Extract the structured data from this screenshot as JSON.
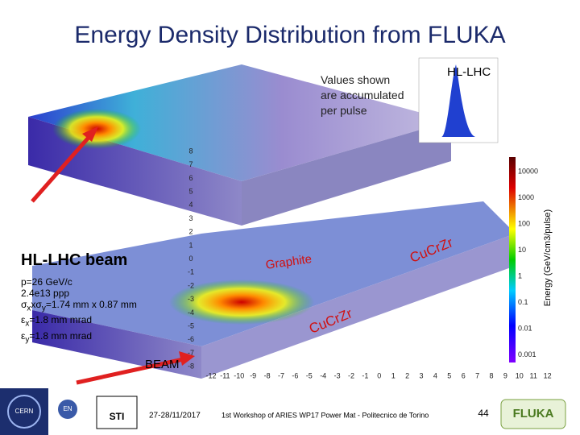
{
  "title": "Energy Density Distribution from FLUKA",
  "note": [
    "Values shown",
    "are accumulated",
    "per pulse"
  ],
  "inset_label": "HL-LHC",
  "beam": {
    "heading": "HL-LHC beam",
    "lines": [
      "p=26 GeV/c",
      "2.4e13 ppp"
    ],
    "sigma": [
      "σ",
      "x",
      "xσ",
      "y",
      "=1.74 mm x 0.87 mm"
    ],
    "emit_x": [
      "ε",
      "x",
      "=1.8 mm mrad"
    ],
    "emit_y": [
      "ε",
      "y",
      "=1.8 mm mrad"
    ]
  },
  "beam_arrow_label": "BEAM",
  "materials": [
    "Graphite",
    "CuCrZr",
    "CuCrZr"
  ],
  "y_axis_labels": [
    8,
    7,
    6,
    5,
    4,
    3,
    2,
    1,
    0,
    -1,
    -2,
    -3,
    -4,
    -5,
    -6,
    -7,
    -8
  ],
  "x_axis_labels": [
    -12,
    -11,
    -10,
    -9,
    -8,
    -7,
    -6,
    -5,
    -4,
    -3,
    -2,
    -1,
    0,
    1,
    2,
    3,
    4,
    5,
    6,
    7,
    8,
    9,
    10,
    11,
    12
  ],
  "colorbar": {
    "labels": [
      "10000",
      "1000",
      "100",
      "10",
      "1",
      "0.1",
      "0.01",
      "0.001"
    ],
    "title": "Energy (GeV/cm3/pulse)"
  },
  "footer": {
    "date": "27-28/11/2017",
    "event": "1st Workshop of ARIES WP17 Power Mat - Politecnico de Torino",
    "page": "44",
    "logo": "FLUKA",
    "cern": "CERN",
    "en": "EN",
    "sti": "STI"
  }
}
